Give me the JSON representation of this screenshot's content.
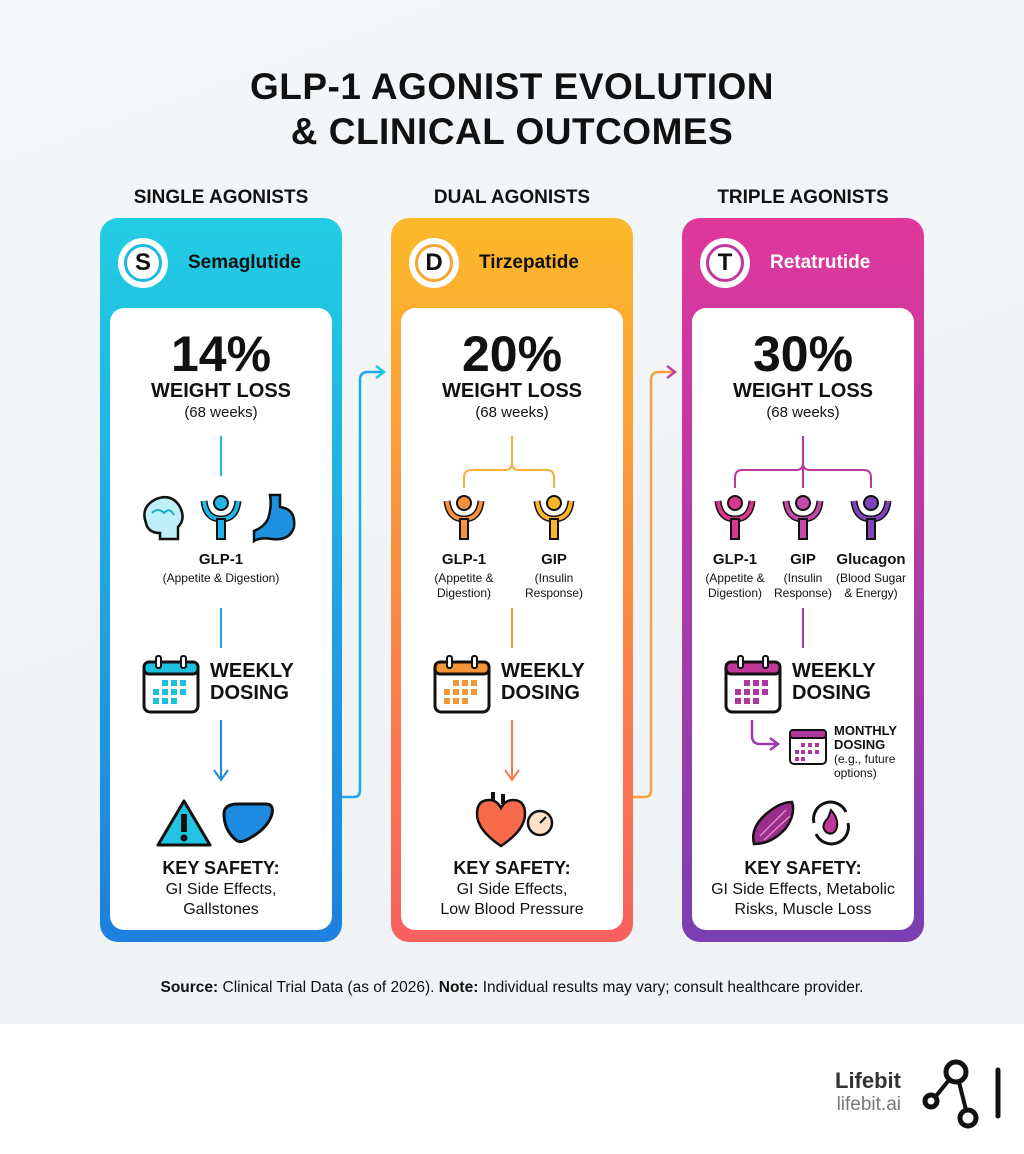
{
  "title": {
    "line1": "GLP-1 AGONIST EVOLUTION",
    "line2": "& CLINICAL OUTCOMES"
  },
  "columns": [
    {
      "category": "SINGLE AGONISTS",
      "badge": "S",
      "drug": "Semaglutide",
      "percent": "14%",
      "outcome": "WEIGHT LOSS",
      "duration": "(68 weeks)",
      "receptors": [
        {
          "name": "GLP-1",
          "desc": "(Appetite & Digestion)"
        }
      ],
      "dosing": [
        "WEEKLY",
        "DOSING"
      ],
      "safety_label": "KEY SAFETY:",
      "safety": [
        "GI Side Effects,",
        "Gallstones"
      ],
      "icons": [
        "brain-icon",
        "receptor-icon",
        "stomach-icon",
        "calendar-icon",
        "warning-icon",
        "liver-icon"
      ],
      "color_top": "#22cde3",
      "color_bottom": "#1e7fdf"
    },
    {
      "category": "DUAL AGONISTS",
      "badge": "D",
      "drug": "Tirzepatide",
      "percent": "20%",
      "outcome": "WEIGHT LOSS",
      "duration": "(68 weeks)",
      "receptors": [
        {
          "name": "GLP-1",
          "desc": [
            "(Appetite &",
            "Digestion)"
          ]
        },
        {
          "name": "GIP",
          "desc": [
            "(Insulin",
            "Response)"
          ]
        }
      ],
      "dosing": [
        "WEEKLY",
        "DOSING"
      ],
      "safety_label": "KEY SAFETY:",
      "safety": [
        "GI Side Effects,",
        "Low Blood Pressure"
      ],
      "icons": [
        "receptor-icon",
        "calendar-icon",
        "heart-icon",
        "blood-pressure-gauge-icon"
      ],
      "color_top": "#fdb92a",
      "color_bottom": "#f8605e"
    },
    {
      "category": "TRIPLE AGONISTS",
      "badge": "T",
      "drug": "Retatrutide",
      "percent": "30%",
      "outcome": "WEIGHT LOSS",
      "duration": "(68 weeks)",
      "receptors": [
        {
          "name": "GLP-1",
          "desc": [
            "(Appetite &",
            "Digestion)"
          ]
        },
        {
          "name": "GIP",
          "desc": [
            "(Insulin",
            "Response)"
          ]
        },
        {
          "name": "Glucagon",
          "desc": [
            "(Blood Sugar",
            "& Energy)"
          ]
        }
      ],
      "dosing": [
        "WEEKLY",
        "DOSING"
      ],
      "monthly": [
        "MONTHLY",
        "DOSING",
        "(e.g., future",
        "options)"
      ],
      "safety_label": "KEY SAFETY:",
      "safety": [
        "GI Side Effects, Metabolic",
        "Risks, Muscle Loss"
      ],
      "icons": [
        "receptor-icon",
        "calendar-icon",
        "muscle-icon",
        "metabolism-icon"
      ],
      "color_top": "#e0379b",
      "color_bottom": "#7a3fb3"
    }
  ],
  "footer": {
    "source_label": "Source:",
    "source": "Clinical Trial Data (as of 2026).",
    "note_label": "Note:",
    "note": "Individual results may vary; consult healthcare provider."
  },
  "brand": {
    "name": "Lifebit",
    "url": "lifebit.ai"
  }
}
